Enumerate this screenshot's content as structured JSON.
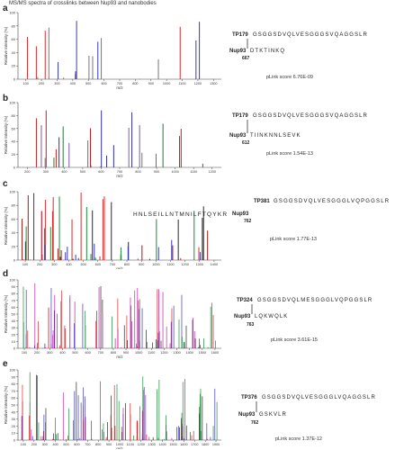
{
  "figure_title": "MS/MS spectra of crosslinks between Nup93 and nanobodies",
  "panels": [
    {
      "letter": "a",
      "ylabel": "Relative Intensity (%)",
      "xlabel": "m/z",
      "xticks": [
        "100",
        "200",
        "300",
        "400",
        "500",
        "600",
        "700",
        "800",
        "900",
        "1000",
        "1100",
        "1200",
        "1300"
      ],
      "yticks": [
        "0",
        "20",
        "40",
        "60",
        "80",
        "100"
      ],
      "peptide1_label": "TP179",
      "peptide1_seq": "GSGGSDVQLVESGGGSVQAGGSLR",
      "peptide2_label": "Nup93",
      "peptide2_seq": "DTKTINKQ",
      "site": "667",
      "score": "pLink score 6.76E-09"
    },
    {
      "letter": "b",
      "ylabel": "Relative Intensity (%)",
      "xlabel": "m/z",
      "xticks": [
        "200",
        "300",
        "400",
        "500",
        "600",
        "700",
        "800",
        "900",
        "1000",
        "1100",
        "1200"
      ],
      "yticks": [
        "0",
        "20",
        "40",
        "60",
        "80",
        "100"
      ],
      "peptide1_label": "TP179",
      "peptide1_seq": "GSGGSDVQLVESGGGSVQAGGSLR",
      "peptide2_label": "Nup93",
      "peptide2_seq": "TIINKNNLSEVK",
      "site": "612",
      "score": "pLink score 1.54E-13"
    },
    {
      "letter": "c",
      "ylabel": "Relative Intensity (%)",
      "xlabel": "m/z",
      "xticks": [
        "100",
        "200",
        "300",
        "400",
        "500",
        "600",
        "700",
        "800",
        "900",
        "1000",
        "1100",
        "1200",
        "1300",
        "1400"
      ],
      "yticks": [
        "0",
        "20",
        "40",
        "60",
        "80",
        "100"
      ],
      "peptide1_label": "TP381",
      "peptide1_seq": "GSGGSDVQLVESGGGLVQPGGSLR",
      "peptide2_label": "Nup93",
      "peptide2_seq": "HNLSEILLNTMNILFTQYKR",
      "site": "762",
      "score": "pLink score 1.77E-13"
    },
    {
      "letter": "d",
      "ylabel": "Relative Intensity (%)",
      "xlabel": "m/z",
      "xticks": [
        "100",
        "200",
        "300",
        "400",
        "500",
        "600",
        "700",
        "800",
        "900",
        "1000",
        "1100",
        "1200",
        "1300",
        "1400",
        "1500",
        "1600"
      ],
      "yticks": [
        "0",
        "10",
        "20",
        "30",
        "40",
        "50",
        "60",
        "70",
        "80",
        "90",
        "100"
      ],
      "peptide1_label": "TP324",
      "peptide1_seq": "GSGGSDVQLMESGGGLVQPGGSLR",
      "peptide2_label": "Nup93",
      "peptide2_seq": "LQKWQLK",
      "site": "763",
      "score": "pLink score 3.61E-15"
    },
    {
      "letter": "e",
      "ylabel": "Relative Intensity (%)",
      "xlabel": "m/z",
      "xticks": [
        "100",
        "200",
        "300",
        "400",
        "500",
        "600",
        "700",
        "800",
        "900",
        "1000",
        "1100",
        "1200",
        "1300",
        "1400",
        "1500",
        "1600",
        "1700",
        "1800",
        "1900"
      ],
      "yticks": [
        "0",
        "10",
        "20",
        "30",
        "40",
        "50",
        "60",
        "70",
        "80",
        "90",
        "100"
      ],
      "peptide1_label": "TP376",
      "peptide1_seq": "GSGGSDVQLVESGGGLVQAGGSLR",
      "peptide2_label": "Nup93",
      "peptide2_seq": "GSKVLR",
      "site": "762",
      "score": "pLink score 1.37E-12"
    }
  ]
}
